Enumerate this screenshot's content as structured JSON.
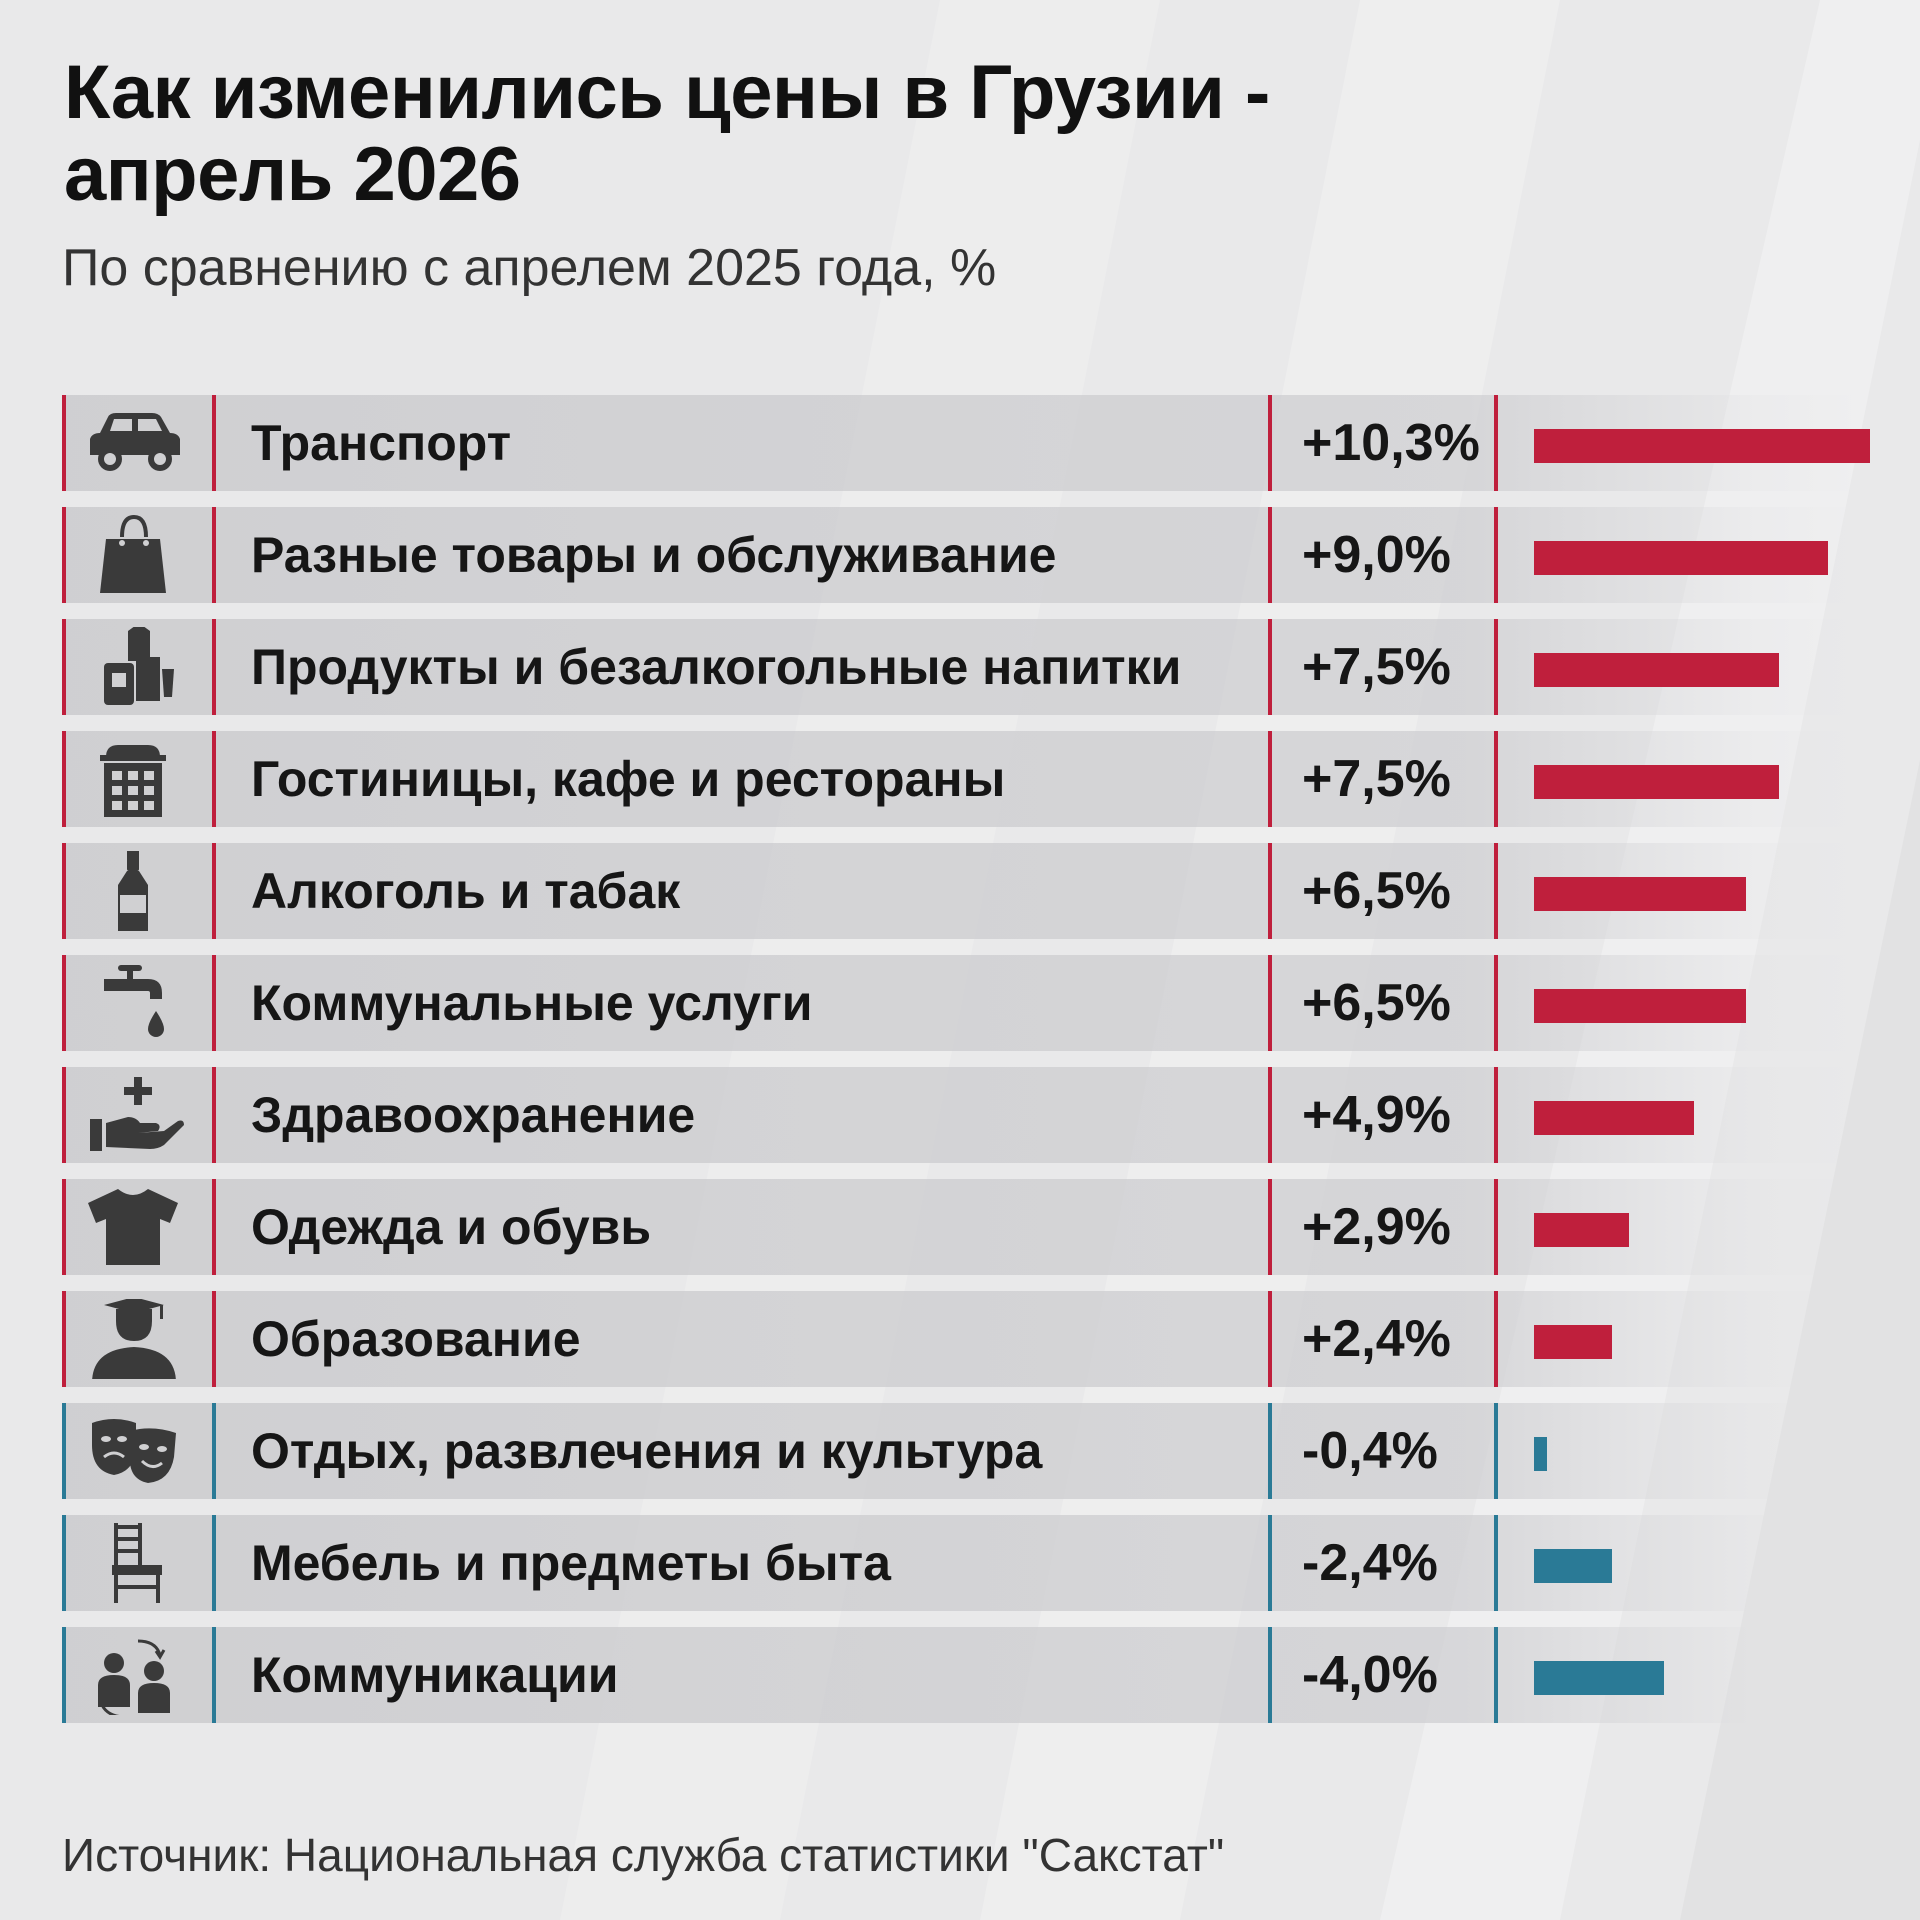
{
  "title_line1": "Как изменились цены в Грузии -",
  "title_line2": "апрель 2026",
  "subtitle": "По сравнению с апрелем 2025 года, %",
  "source": "Источник: Национальная служба статистики \"Сакстат\"",
  "colors": {
    "positive": "#bf1f3c",
    "negative": "#2a7a96",
    "text": "#161616"
  },
  "chart_data": {
    "type": "bar",
    "orientation": "horizontal",
    "unit": "%",
    "items": [
      {
        "label": "Транспорт",
        "value": 10.3,
        "value_text": "+10,3%",
        "icon": "car-icon"
      },
      {
        "label": "Разные товары и обслуживание",
        "value": 9.0,
        "value_text": "+9,0%",
        "icon": "shopping-bag-icon"
      },
      {
        "label": "Продукты и безалкогольные напитки",
        "value": 7.5,
        "value_text": "+7,5%",
        "icon": "groceries-icon"
      },
      {
        "label": "Гостиницы, кафе и рестораны",
        "value": 7.5,
        "value_text": "+7,5%",
        "icon": "hotel-icon"
      },
      {
        "label": "Алкоголь и табак",
        "value": 6.5,
        "value_text": "+6,5%",
        "icon": "bottle-icon"
      },
      {
        "label": "Коммунальные услуги",
        "value": 6.5,
        "value_text": "+6,5%",
        "icon": "water-tap-icon"
      },
      {
        "label": "Здравоохранение",
        "value": 4.9,
        "value_text": "+4,9%",
        "icon": "healthcare-hand-icon"
      },
      {
        "label": "Одежда и обувь",
        "value": 2.9,
        "value_text": "+2,9%",
        "icon": "tshirt-icon"
      },
      {
        "label": "Образование",
        "value": 2.4,
        "value_text": "+2,4%",
        "icon": "graduate-icon"
      },
      {
        "label": "Отдых, развлечения и культура",
        "value": -0.4,
        "value_text": "-0,4%",
        "icon": "theater-masks-icon"
      },
      {
        "label": "Мебель и предметы быта",
        "value": -2.4,
        "value_text": "-2,4%",
        "icon": "chair-icon"
      },
      {
        "label": "Коммуникации",
        "value": -4.0,
        "value_text": "-4,0%",
        "icon": "communication-people-icon"
      }
    ]
  }
}
